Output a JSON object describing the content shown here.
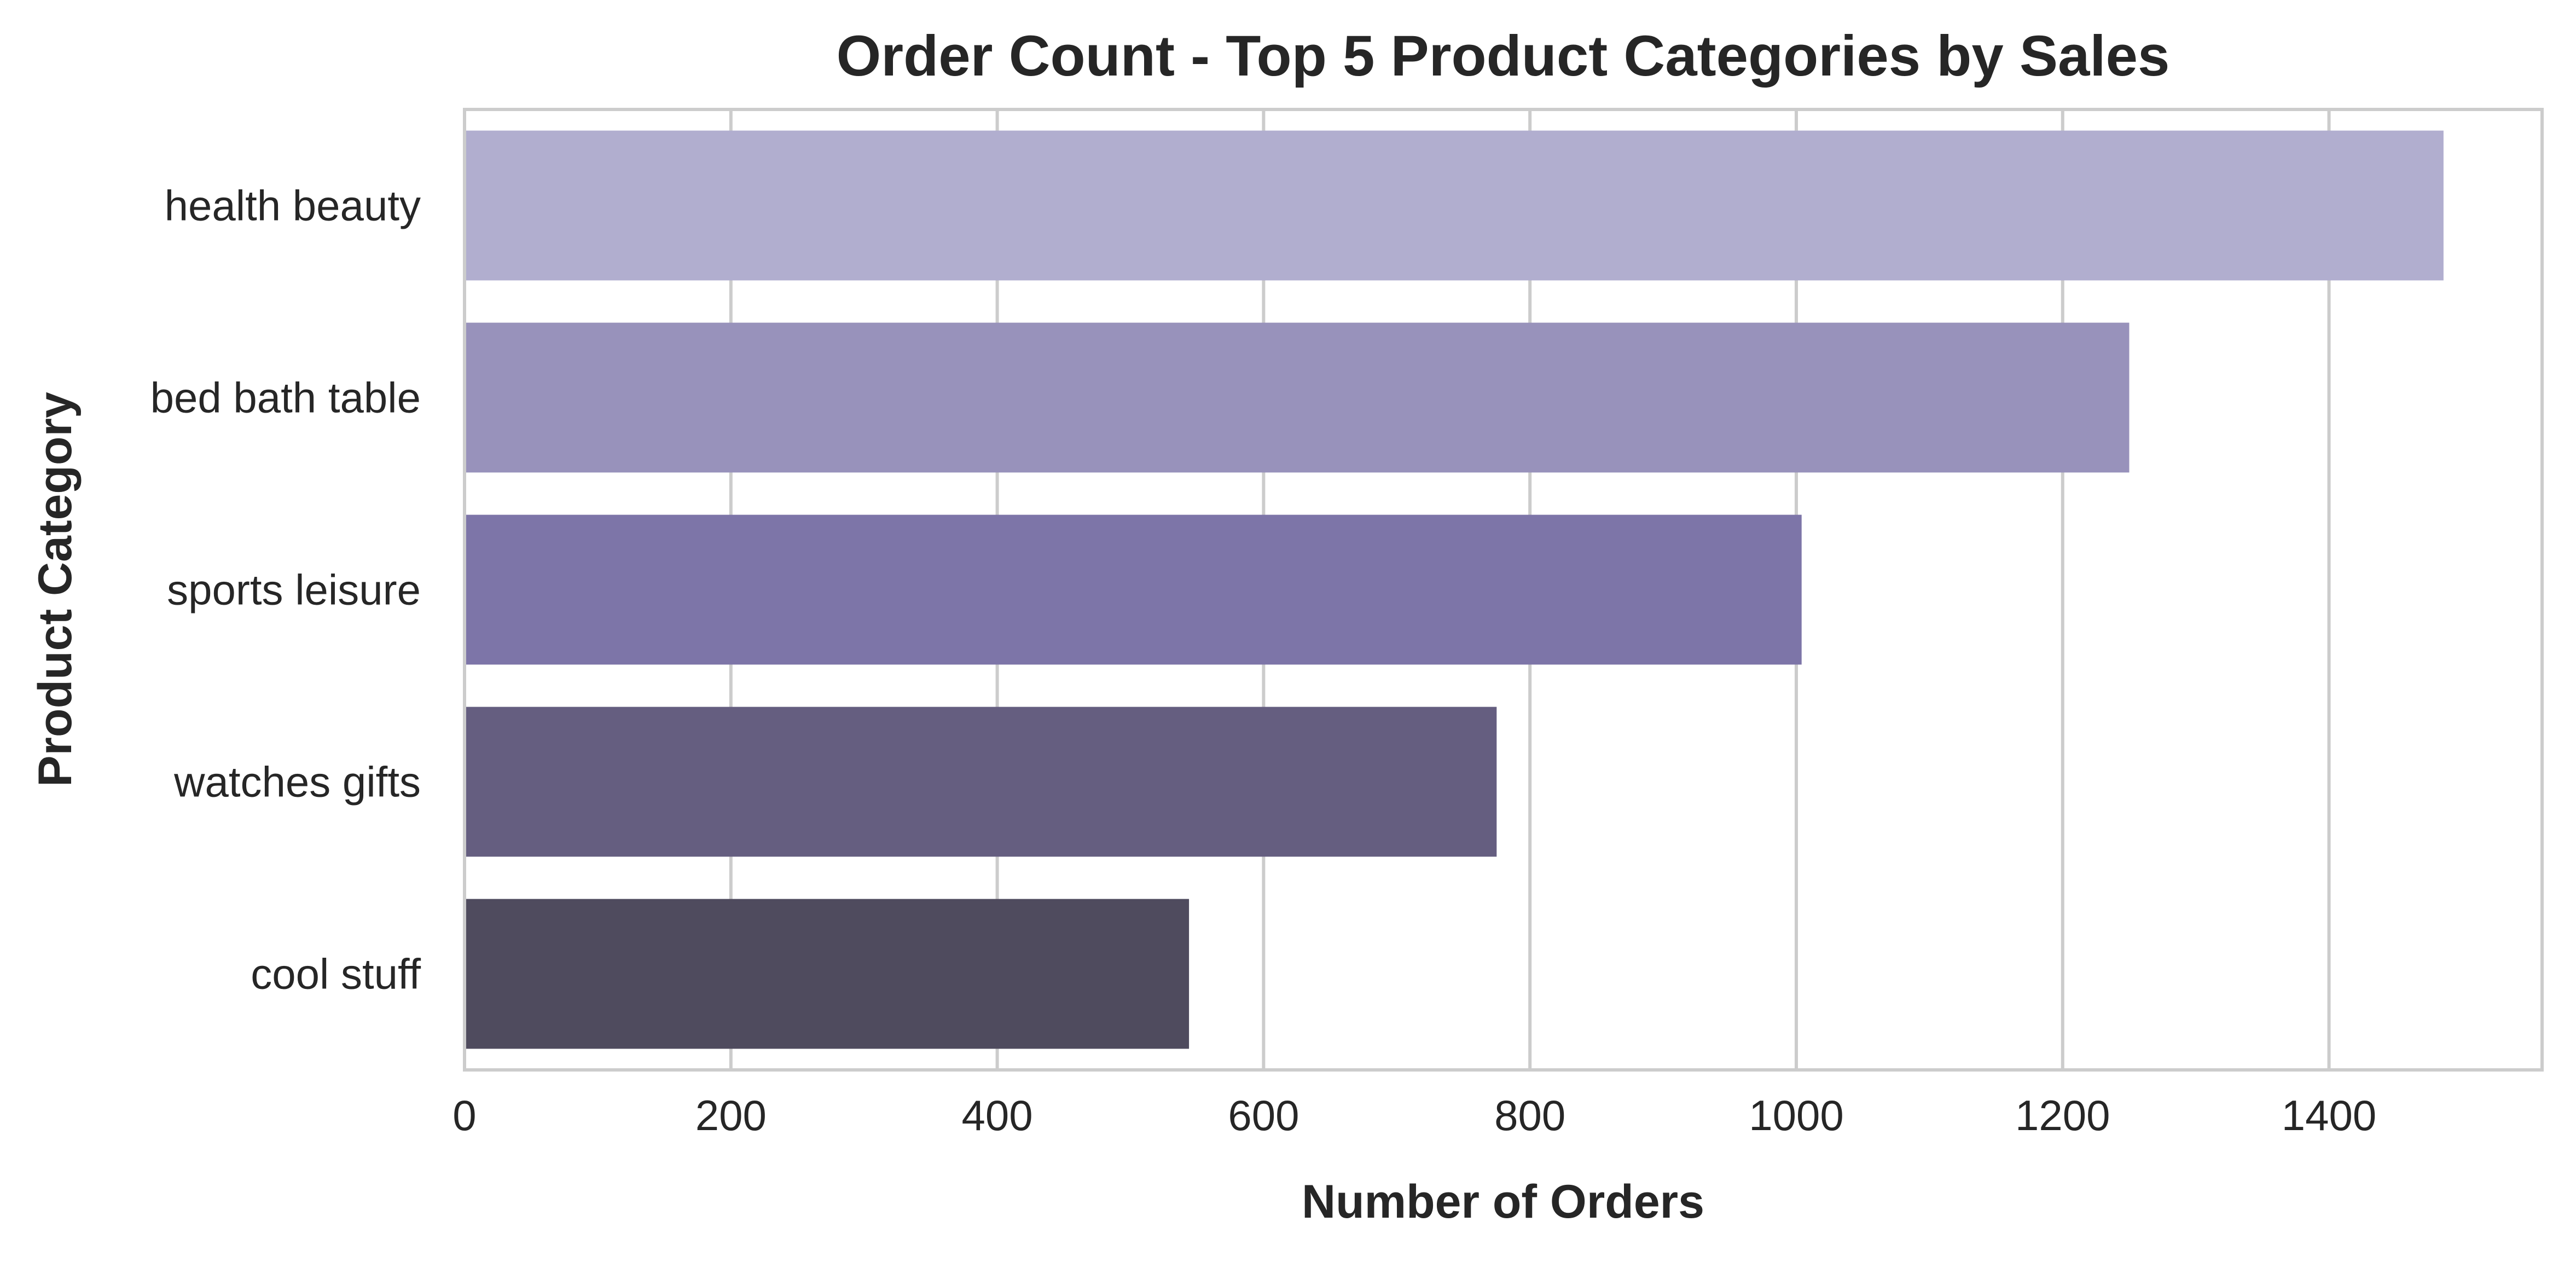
{
  "chart_data": {
    "type": "bar",
    "orientation": "horizontal",
    "title": "Order Count - Top 5 Product Categories by Sales",
    "xlabel": "Number of Orders",
    "ylabel": "Product Category",
    "categories": [
      "health beauty",
      "bed bath table",
      "sports leisure",
      "watches gifts",
      "cool stuff"
    ],
    "values": [
      1486,
      1250,
      1004,
      775,
      544
    ],
    "xlim": [
      0,
      1560
    ],
    "xticks": [
      0,
      200,
      400,
      600,
      800,
      1000,
      1200,
      1400
    ],
    "grid": true,
    "bar_colors": [
      "#b1aecf",
      "#9892bb",
      "#7d75a8",
      "#655e80",
      "#4f4b5e"
    ]
  },
  "colors": {
    "background": "#ffffff",
    "grid": "#cccccc",
    "axis_frame": "#cccccc",
    "text": "#262626"
  }
}
